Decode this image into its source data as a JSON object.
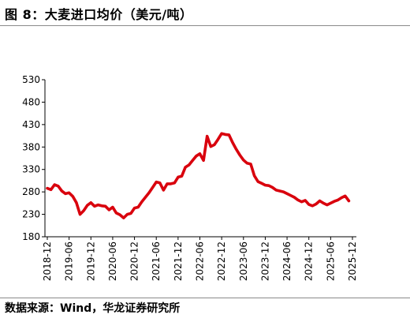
{
  "figure": {
    "title": "图 8：大麦进口均价（美元/吨）",
    "source": "数据来源：Wind，华龙证券研究所"
  },
  "chart_data": {
    "type": "line",
    "title": "",
    "xlabel": "",
    "ylabel": "",
    "ylim": [
      180,
      530
    ],
    "yticks": [
      180,
      230,
      280,
      330,
      380,
      430,
      480,
      530
    ],
    "xticks": [
      "2018-12",
      "2019-06",
      "2019-12",
      "2020-06",
      "2020-12",
      "2021-06",
      "2021-12",
      "2022-06",
      "2022-12",
      "2023-06",
      "2023-12",
      "2024-06",
      "2024-12",
      "2025-06",
      "2025-12"
    ],
    "grid": false,
    "legend": "none",
    "line_color": "#d9000d",
    "x": [
      "2018-12",
      "2019-01",
      "2019-02",
      "2019-03",
      "2019-04",
      "2019-05",
      "2019-06",
      "2019-07",
      "2019-08",
      "2019-09",
      "2019-10",
      "2019-11",
      "2019-12",
      "2020-01",
      "2020-02",
      "2020-03",
      "2020-04",
      "2020-05",
      "2020-06",
      "2020-07",
      "2020-08",
      "2020-09",
      "2020-10",
      "2020-11",
      "2020-12",
      "2021-01",
      "2021-02",
      "2021-03",
      "2021-04",
      "2021-05",
      "2021-06",
      "2021-07",
      "2021-08",
      "2021-09",
      "2021-10",
      "2021-11",
      "2021-12",
      "2022-01",
      "2022-02",
      "2022-03",
      "2022-04",
      "2022-05",
      "2022-06",
      "2022-07",
      "2022-08",
      "2022-09",
      "2022-10",
      "2022-11",
      "2022-12",
      "2023-01",
      "2023-02",
      "2023-03",
      "2023-04",
      "2023-05",
      "2023-06",
      "2023-07",
      "2023-08",
      "2023-09",
      "2023-10",
      "2023-11",
      "2023-12",
      "2024-01",
      "2024-02",
      "2024-03",
      "2024-04",
      "2024-05",
      "2024-06",
      "2024-07",
      "2024-08",
      "2024-09",
      "2024-10",
      "2024-11",
      "2024-12",
      "2025-01",
      "2025-02",
      "2025-03",
      "2025-04",
      "2025-05",
      "2025-06",
      "2025-07",
      "2025-08",
      "2025-09",
      "2025-10",
      "2025-11"
    ],
    "series": [
      {
        "values": [
          288,
          285,
          296,
          293,
          282,
          276,
          278,
          270,
          256,
          230,
          238,
          250,
          256,
          248,
          251,
          249,
          248,
          240,
          246,
          233,
          229,
          222,
          230,
          232,
          244,
          246,
          258,
          268,
          278,
          290,
          302,
          300,
          284,
          298,
          298,
          300,
          313,
          315,
          335,
          340,
          350,
          360,
          365,
          350,
          404,
          381,
          385,
          397,
          410,
          408,
          407,
          390,
          375,
          362,
          351,
          344,
          342,
          316,
          303,
          299,
          295,
          294,
          290,
          284,
          282,
          280,
          276,
          272,
          268,
          262,
          258,
          261,
          252,
          249,
          253,
          260,
          255,
          251,
          255,
          259,
          262,
          267,
          271,
          260
        ]
      }
    ]
  }
}
